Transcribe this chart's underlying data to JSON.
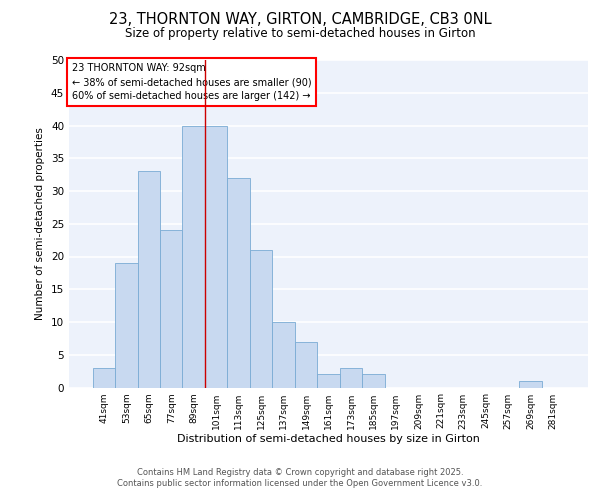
{
  "title_line1": "23, THORNTON WAY, GIRTON, CAMBRIDGE, CB3 0NL",
  "title_line2": "Size of property relative to semi-detached houses in Girton",
  "categories": [
    "41sqm",
    "53sqm",
    "65sqm",
    "77sqm",
    "89sqm",
    "101sqm",
    "113sqm",
    "125sqm",
    "137sqm",
    "149sqm",
    "161sqm",
    "173sqm",
    "185sqm",
    "197sqm",
    "209sqm",
    "221sqm",
    "233sqm",
    "245sqm",
    "257sqm",
    "269sqm",
    "281sqm"
  ],
  "values": [
    3,
    19,
    33,
    24,
    40,
    40,
    32,
    21,
    10,
    7,
    2,
    3,
    2,
    0,
    0,
    0,
    0,
    0,
    0,
    1,
    0
  ],
  "bar_color": "#c8d9f0",
  "bar_edge_color": "#7aabd4",
  "background_color": "#edf2fb",
  "grid_color": "#ffffff",
  "red_line_x": 4.5,
  "red_line_color": "#cc0000",
  "ylabel": "Number of semi-detached properties",
  "xlabel": "Distribution of semi-detached houses by size in Girton",
  "ylim": [
    0,
    50
  ],
  "yticks": [
    0,
    5,
    10,
    15,
    20,
    25,
    30,
    35,
    40,
    45,
    50
  ],
  "annotation_title": "23 THORNTON WAY: 92sqm",
  "annotation_line1": "← 38% of semi-detached houses are smaller (90)",
  "annotation_line2": "60% of semi-detached houses are larger (142) →",
  "footer_line1": "Contains HM Land Registry data © Crown copyright and database right 2025.",
  "footer_line2": "Contains public sector information licensed under the Open Government Licence v3.0."
}
